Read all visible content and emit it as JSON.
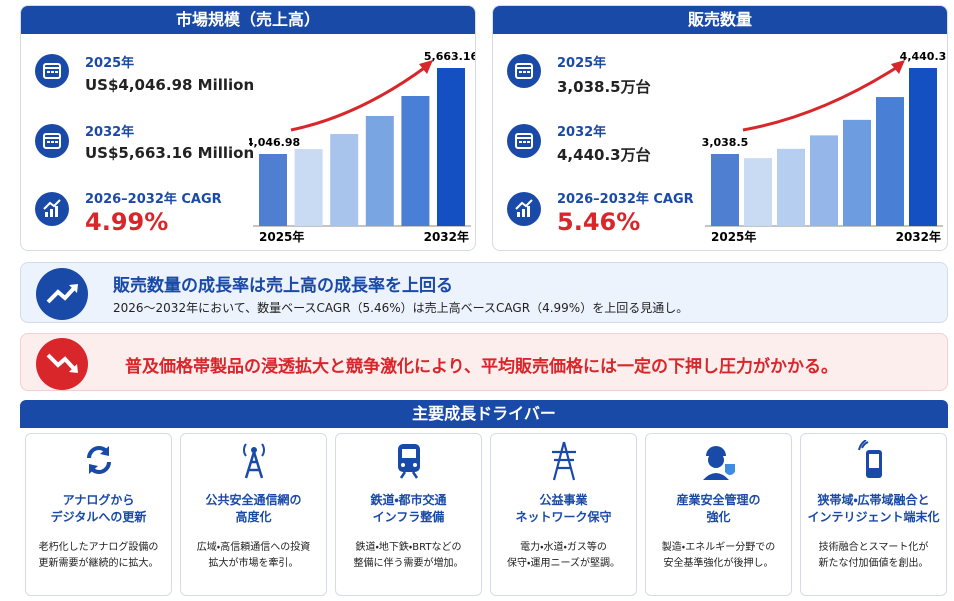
{
  "market_size": {
    "title": "市場規模（売上高）",
    "items": [
      {
        "label": "2025年",
        "value": "US$4,046.98 Million"
      },
      {
        "label": "2032年",
        "value": "US$5,663.16 Million"
      },
      {
        "label": "2026–2032年 CAGR",
        "value": "4.99%"
      }
    ],
    "chart": {
      "values": [
        4046.98,
        4140,
        4423,
        4761,
        5137,
        5663.16
      ],
      "value_labels": [
        "4,046.98",
        null,
        null,
        null,
        null,
        "5,663.16"
      ],
      "colors": [
        "#4f7fd0",
        "#c9dbf3",
        "#a8c4ec",
        "#7aa5e3",
        "#4a7fd6",
        "#1450c2"
      ],
      "x_start": "2025年",
      "x_end": "2032年"
    }
  },
  "sales_volume": {
    "title": "販売数量",
    "items": [
      {
        "label": "2025年",
        "value": "3,038.5万台"
      },
      {
        "label": "2032年",
        "value": "4,440.3万台"
      },
      {
        "label": "2026–2032年 CAGR",
        "value": "5.46%"
      }
    ],
    "chart": {
      "values": [
        3038.5,
        2971,
        3123,
        3342,
        3595,
        3967,
        4440.3
      ],
      "value_labels": [
        "3,038.5",
        null,
        null,
        null,
        null,
        null,
        "4,440.3"
      ],
      "colors": [
        "#4f7fd0",
        "#c9dbf3",
        "#b6cff0",
        "#94b6e8",
        "#6e9ce0",
        "#4a7fd6",
        "#1450c2"
      ],
      "x_start": "2025年",
      "x_end": "2032年"
    }
  },
  "highlight": {
    "title": "販売数量の成長率は売上高の成長率を上回る",
    "text": "2026～2032年において、数量ベースCAGR（5.46%）は売上高ベースCAGR（4.99%）を上回る見通し。"
  },
  "warning": {
    "text": "普及価格帯製品の浸透拡大と競争激化により、平均販売価格には一定の下押し圧力がかかる。"
  },
  "drivers": {
    "title": "主要成長ドライバー",
    "items": [
      {
        "title": "アナログから\nデジタルへの更新",
        "text": "老朽化したアナログ設備の\n更新需要が継続的に拡大。"
      },
      {
        "title": "公共安全通信網の\n高度化",
        "text": "広域・高信頼通信への投資\n拡大が市場を牽引。"
      },
      {
        "title": "鉄道・都市交通\nインフラ整備",
        "text": "鉄道・地下鉄・BRTなどの\n整備に伴う需要が増加。"
      },
      {
        "title": "公益事業\nネットワーク保守",
        "text": "電力・水道・ガス等の\n保守・運用ニーズが堅調。"
      },
      {
        "title": "産業安全管理の\n強化",
        "text": "製造・エネルギー分野での\n安全基準強化が後押し。"
      },
      {
        "title": "狭帯域・広帯域融合と\nインテリジェント端末化",
        "text": "技術融合とスマート化が\n新たな付加価値を創出。"
      }
    ]
  }
}
